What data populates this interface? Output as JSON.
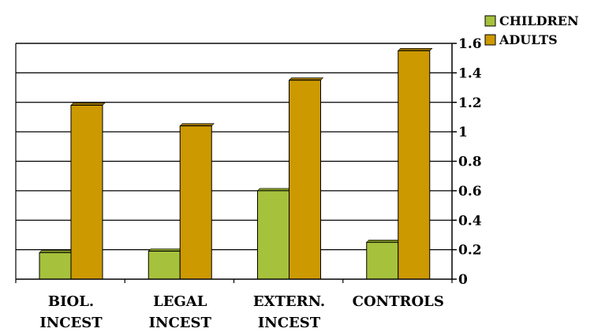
{
  "chart_data": {
    "type": "bar",
    "categories": [
      [
        "BIOL.",
        "INCEST"
      ],
      [
        "LEGAL",
        "INCEST"
      ],
      [
        "EXTERN.",
        "INCEST"
      ],
      [
        "CONTROLS"
      ]
    ],
    "series": [
      {
        "name": "CHILDREN",
        "color": "#a6c13c",
        "values": [
          0.18,
          0.19,
          0.6,
          0.25
        ]
      },
      {
        "name": "ADULTS",
        "color": "#cc9900",
        "values": [
          1.18,
          1.04,
          1.35,
          1.55
        ]
      }
    ],
    "y_axis": {
      "position": "right",
      "min": 0,
      "max": 1.6,
      "step": 0.2,
      "ticks": [
        "0",
        "0.2",
        "0.4",
        "0.6",
        "0.8",
        "1",
        "1.2",
        "1.4",
        "1.6"
      ]
    },
    "grid": true,
    "legend_position": "top-right",
    "title": "",
    "xlabel": "",
    "ylabel": ""
  }
}
